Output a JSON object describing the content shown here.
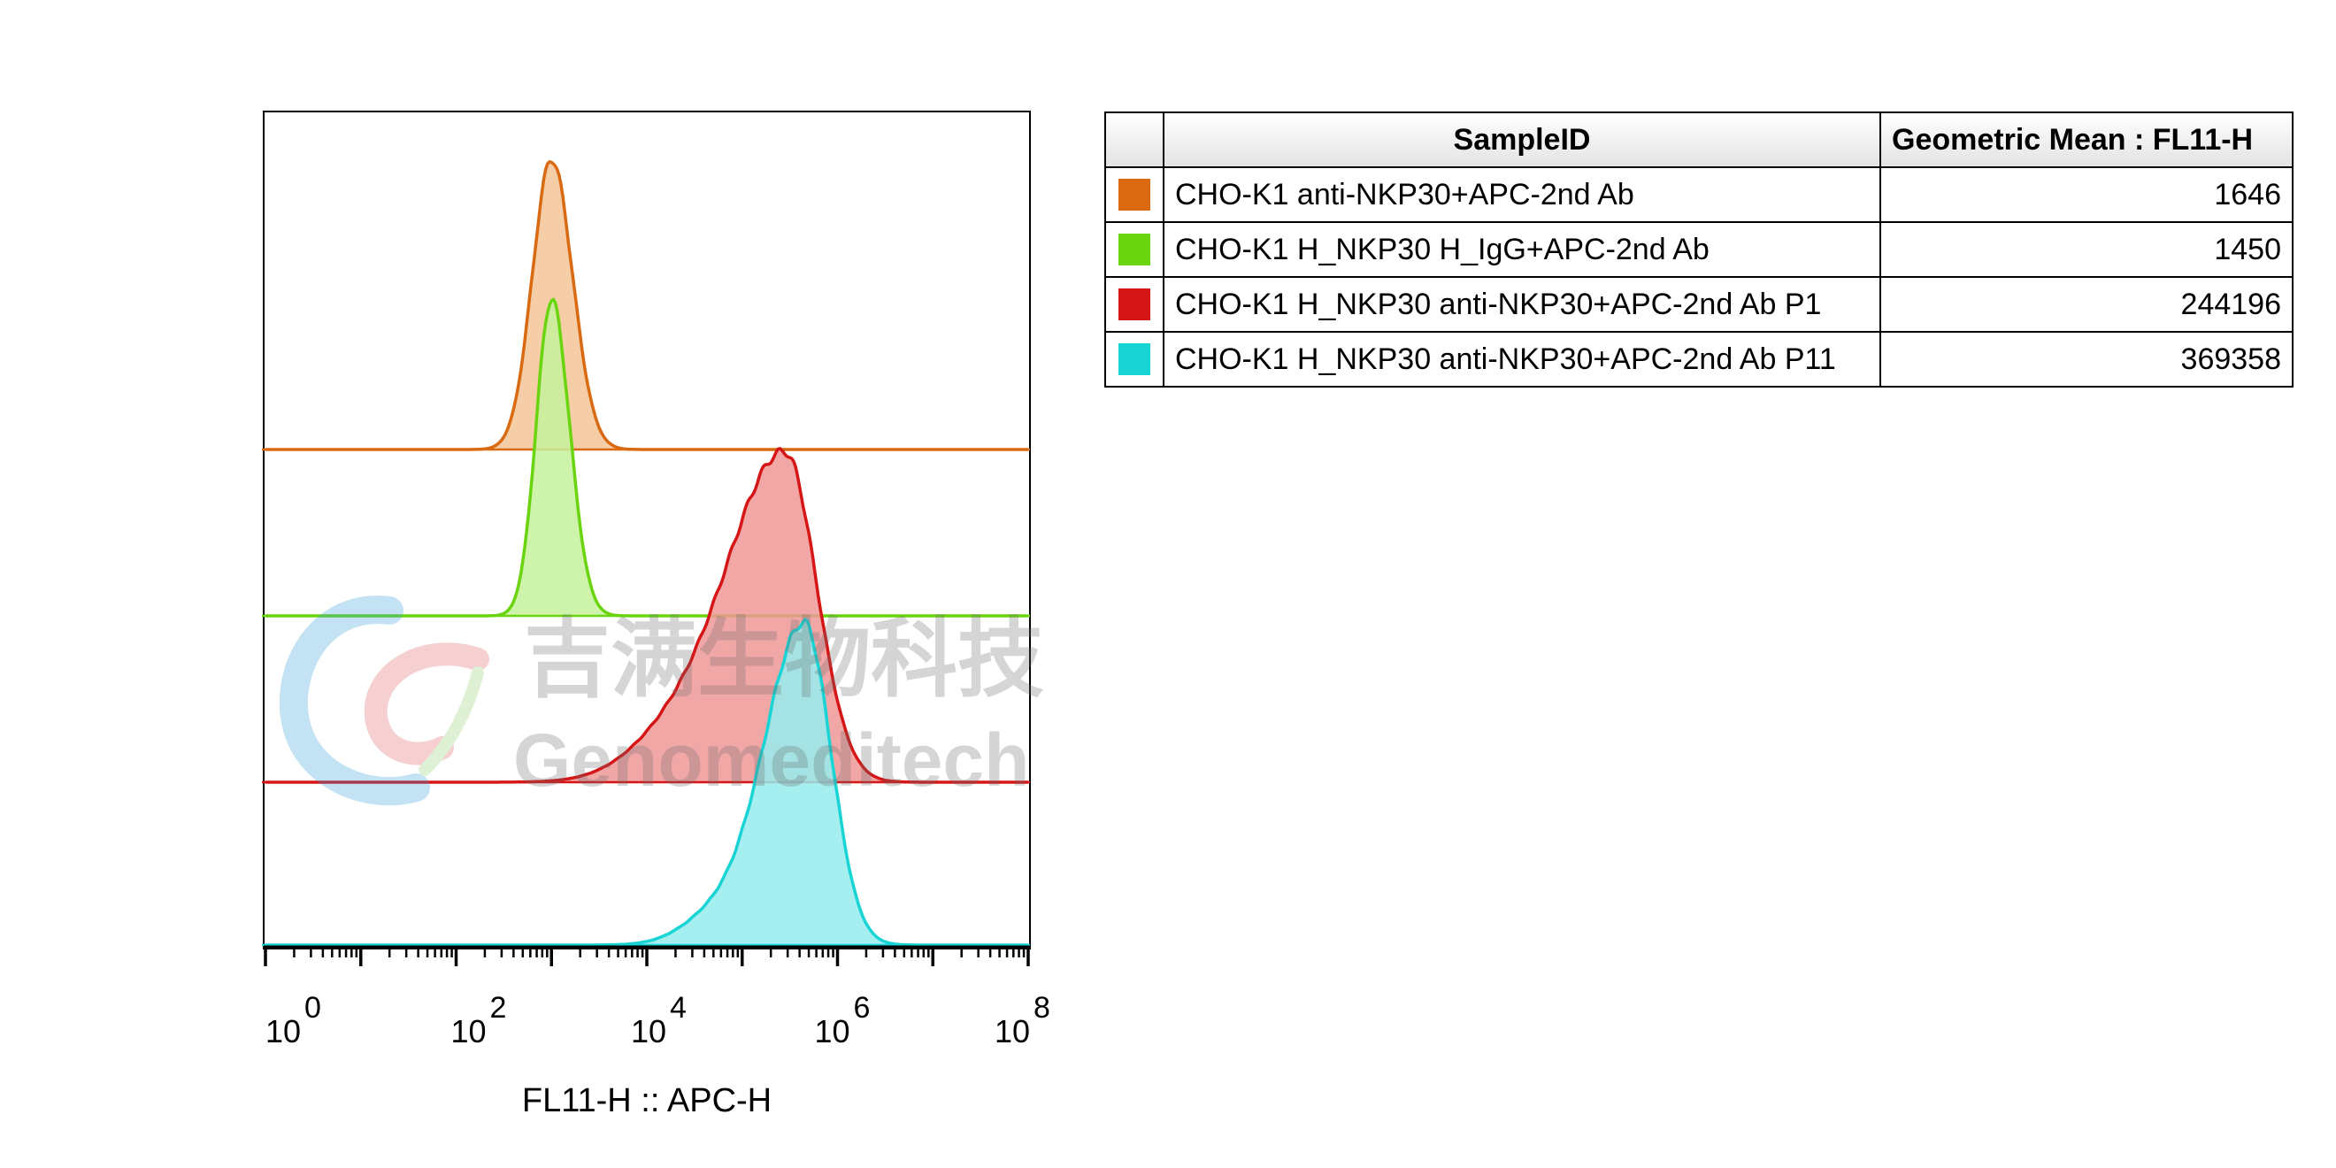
{
  "chart_data": {
    "type": "area",
    "layout": "stacked-offset-histogram",
    "title": "",
    "xlabel": "FL11-H :: APC-H",
    "ylabel": "",
    "x_scale": "log",
    "xlim": [
      1,
      100000000
    ],
    "x_ticks": [
      {
        "base": "10",
        "exp": "0",
        "value": 1
      },
      {
        "base": "10",
        "exp": "2",
        "value": 100
      },
      {
        "base": "10",
        "exp": "4",
        "value": 10000
      },
      {
        "base": "10",
        "exp": "6",
        "value": 1000000
      },
      {
        "base": "10",
        "exp": "8",
        "value": 100000000
      }
    ],
    "table_headers": {
      "sample": "SampleID",
      "mean": "Geometric Mean : FL11-H"
    },
    "series": [
      {
        "name": "CHO-K1 anti-NKP30+APC-2nd Ab",
        "geometric_mean": "1646",
        "color": "#d96a12",
        "fill": "#f3c496",
        "peak_log": 3.0,
        "sigma_left": 0.2,
        "sigma_right": 0.22,
        "peak_height": 1.0,
        "shoulder": null
      },
      {
        "name": "CHO-K1 H_NKP30 H_IgG+APC-2nd Ab",
        "geometric_mean": "1450",
        "color": "#6ad40f",
        "fill": "#c6f19c",
        "peak_log": 3.0,
        "sigma_left": 0.16,
        "sigma_right": 0.19,
        "peak_height": 1.0,
        "shoulder": null
      },
      {
        "name": "CHO-K1 H_NKP30 anti-NKP30+APC-2nd Ab P1",
        "geometric_mean": "244196",
        "color": "#d61616",
        "fill": "#f09898",
        "peak_log": 5.45,
        "sigma_left": 0.6,
        "sigma_right": 0.33,
        "peak_height": 0.98,
        "shoulder": {
          "center_log": 4.3,
          "sigma": 0.5,
          "height": 0.12
        }
      },
      {
        "name": "CHO-K1 H_NKP30 anti-NKP30+APC-2nd Ab P11",
        "geometric_mean": "369358",
        "color": "#19d4d4",
        "fill": "#97ecee",
        "peak_log": 5.65,
        "sigma_left": 0.42,
        "sigma_right": 0.28,
        "peak_height": 1.0,
        "shoulder": {
          "center_log": 4.7,
          "sigma": 0.35,
          "height": 0.08
        }
      }
    ]
  },
  "watermark": {
    "text_cn": "吉满生物科技",
    "text_en": "Genomeditech"
  }
}
